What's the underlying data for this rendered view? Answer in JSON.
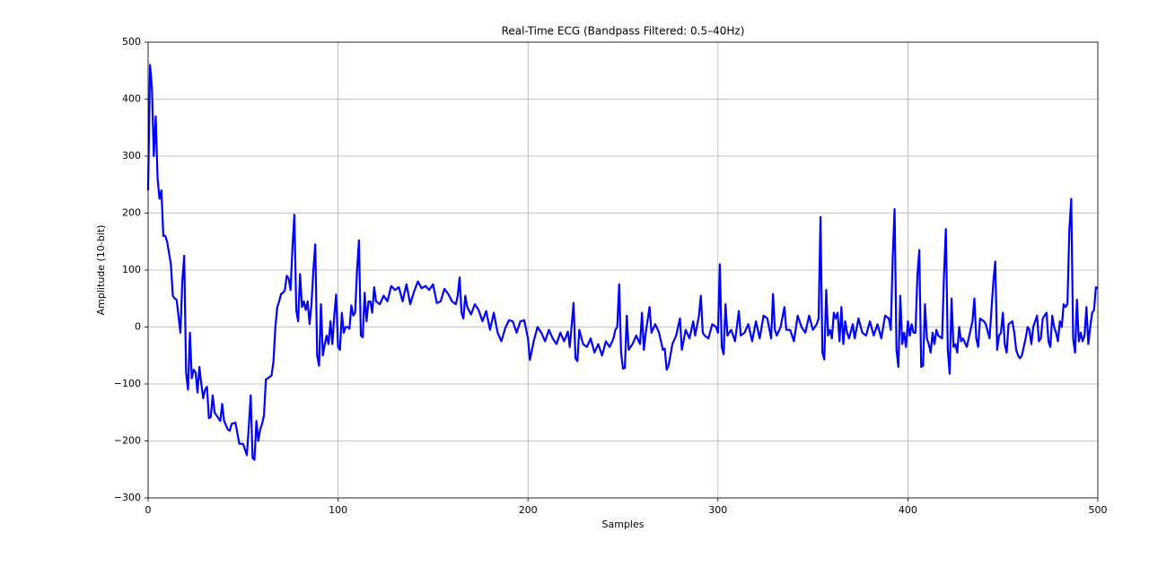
{
  "chart_data": {
    "type": "line",
    "title": "Real-Time ECG (Bandpass Filtered: 0.5–40Hz)",
    "xlabel": "Samples",
    "ylabel": "Amplitude (10-bit)",
    "color": "#0000ff",
    "grid": true,
    "xlim": [
      0,
      500
    ],
    "ylim": [
      -300,
      500
    ],
    "xticks": [
      0,
      100,
      200,
      300,
      400,
      500
    ],
    "yticks": [
      {
        "value": -300,
        "label": "−300"
      },
      {
        "value": -200,
        "label": "−200"
      },
      {
        "value": -100,
        "label": "−100"
      },
      0,
      100,
      200,
      300,
      400,
      500
    ],
    "x": [
      0,
      1,
      2,
      3,
      4,
      5,
      6,
      7,
      8,
      9,
      10,
      12,
      13,
      14,
      15,
      17,
      18,
      19,
      20,
      21,
      22,
      23,
      24,
      25,
      26,
      27,
      28,
      29,
      30,
      31,
      32,
      33,
      34,
      35,
      36,
      38,
      39,
      40,
      42,
      43,
      44,
      46,
      48,
      50,
      52,
      53,
      54,
      55,
      56,
      57,
      58,
      59,
      60,
      61,
      62,
      63,
      65,
      66,
      67,
      68,
      69,
      70,
      71,
      72,
      73,
      74,
      75,
      76,
      77,
      78,
      79,
      80,
      81,
      82,
      83,
      84,
      85,
      86,
      87,
      88,
      89,
      90,
      91,
      92,
      93,
      94,
      95,
      96,
      97,
      98,
      99,
      100,
      101,
      102,
      103,
      104,
      105,
      106,
      107,
      108,
      109,
      110,
      111,
      112,
      113,
      114,
      115,
      116,
      117,
      118,
      119,
      120,
      122,
      124,
      126,
      128,
      130,
      132,
      134,
      136,
      138,
      140,
      142,
      144,
      146,
      148,
      150,
      152,
      154,
      156,
      158,
      160,
      162,
      163,
      164,
      165,
      166,
      167,
      168,
      170,
      172,
      174,
      176,
      178,
      180,
      182,
      184,
      186,
      188,
      190,
      192,
      194,
      196,
      198,
      200,
      201,
      203,
      205,
      207,
      209,
      211,
      213,
      215,
      217,
      219,
      221,
      222,
      224,
      225,
      226,
      227,
      229,
      231,
      233,
      235,
      237,
      239,
      241,
      243,
      245,
      246,
      247,
      248,
      249,
      250,
      251,
      252,
      253,
      255,
      257,
      259,
      260,
      261,
      262,
      264,
      265,
      267,
      269,
      271,
      272,
      273,
      274,
      276,
      278,
      280,
      281,
      283,
      285,
      287,
      288,
      290,
      291,
      292,
      293,
      295,
      297,
      299,
      300,
      301,
      302,
      303,
      304,
      305,
      307,
      309,
      311,
      312,
      314,
      316,
      318,
      320,
      322,
      324,
      326,
      328,
      329,
      330,
      331,
      333,
      335,
      336,
      338,
      340,
      342,
      344,
      346,
      348,
      350,
      352,
      353,
      354,
      355,
      356,
      357,
      358,
      359,
      360,
      361,
      362,
      363,
      364,
      365,
      366,
      367,
      368,
      369,
      371,
      372,
      374,
      376,
      378,
      380,
      382,
      384,
      386,
      388,
      390,
      391,
      392,
      393,
      394,
      395,
      396,
      397,
      398,
      399,
      400,
      401,
      402,
      403,
      404,
      405,
      406,
      407,
      408,
      409,
      410,
      411,
      412,
      413,
      414,
      415,
      416,
      418,
      419,
      420,
      421,
      422,
      423,
      424,
      425,
      426,
      427,
      428,
      429,
      431,
      432,
      434,
      435,
      436,
      437,
      438,
      440,
      441,
      443,
      444,
      445,
      446,
      447,
      448,
      449,
      450,
      451,
      452,
      453,
      455,
      456,
      457,
      458,
      459,
      460,
      462,
      463,
      464,
      465,
      466,
      468,
      469,
      470,
      471,
      473,
      474,
      475,
      476,
      477,
      478,
      479,
      480,
      481,
      482,
      483,
      484,
      485,
      486,
      487,
      488,
      489,
      490,
      491,
      492,
      493,
      494,
      495,
      496,
      497,
      498,
      499,
      500
    ],
    "values": [
      240,
      460,
      420,
      300,
      370,
      260,
      225,
      240,
      160,
      160,
      150,
      110,
      55,
      50,
      48,
      -10,
      80,
      125,
      -80,
      -110,
      -10,
      -90,
      -75,
      -80,
      -115,
      -70,
      -100,
      -125,
      -110,
      -105,
      -160,
      -158,
      -120,
      -150,
      -155,
      -165,
      -135,
      -165,
      -180,
      -182,
      -170,
      -168,
      -205,
      -205,
      -225,
      -175,
      -120,
      -230,
      -233,
      -165,
      -200,
      -180,
      -170,
      -155,
      -92,
      -90,
      -85,
      -60,
      0,
      35,
      45,
      58,
      60,
      65,
      90,
      85,
      65,
      140,
      197,
      30,
      10,
      93,
      35,
      45,
      30,
      45,
      5,
      40,
      100,
      145,
      -50,
      -68,
      40,
      -50,
      -30,
      -15,
      -30,
      10,
      -30,
      20,
      57,
      -35,
      -40,
      25,
      -10,
      0,
      0,
      -3,
      38,
      20,
      25,
      100,
      152,
      -15,
      -18,
      60,
      10,
      45,
      45,
      25,
      70,
      45,
      40,
      55,
      45,
      72,
      65,
      70,
      45,
      75,
      40,
      62,
      80,
      68,
      72,
      65,
      75,
      42,
      45,
      67,
      58,
      45,
      40,
      55,
      87,
      25,
      15,
      55,
      35,
      22,
      40,
      30,
      10,
      28,
      -5,
      25,
      -10,
      -25,
      -2,
      12,
      10,
      -10,
      10,
      12,
      -20,
      -58,
      -25,
      0,
      -10,
      -25,
      -5,
      -20,
      -30,
      -10,
      -25,
      -8,
      -35,
      42,
      -55,
      -60,
      -5,
      -30,
      -35,
      -20,
      -45,
      -30,
      -50,
      -25,
      -35,
      -20,
      -5,
      0,
      75,
      -45,
      -73,
      -72,
      20,
      -40,
      -30,
      -15,
      -30,
      25,
      -40,
      -10,
      35,
      -10,
      5,
      -10,
      -40,
      -38,
      -75,
      -68,
      -30,
      -15,
      15,
      -40,
      -5,
      -20,
      10,
      -15,
      20,
      55,
      -10,
      -15,
      -20,
      5,
      0,
      -10,
      110,
      -35,
      -48,
      40,
      -15,
      -5,
      -25,
      28,
      -15,
      -10,
      5,
      -25,
      10,
      -20,
      20,
      15,
      -20,
      58,
      -5,
      -15,
      0,
      35,
      -5,
      -5,
      -25,
      20,
      0,
      -10,
      20,
      -5,
      5,
      15,
      193,
      -45,
      -57,
      65,
      -15,
      -5,
      -20,
      25,
      15,
      25,
      -25,
      35,
      -30,
      10,
      -10,
      -20,
      5,
      -20,
      15,
      -10,
      -15,
      10,
      -15,
      5,
      -20,
      20,
      15,
      -5,
      120,
      207,
      -40,
      -70,
      55,
      -30,
      -10,
      -35,
      10,
      -15,
      5,
      -10,
      -10,
      90,
      135,
      -70,
      -68,
      40,
      -20,
      -30,
      -45,
      -10,
      -30,
      -5,
      -15,
      -20,
      90,
      172,
      -40,
      -82,
      50,
      -35,
      -30,
      -45,
      0,
      -25,
      -20,
      -35,
      -20,
      10,
      50,
      -20,
      -35,
      15,
      10,
      5,
      -20,
      30,
      80,
      115,
      -40,
      -15,
      -10,
      25,
      -30,
      -45,
      5,
      10,
      -10,
      -40,
      -50,
      -55,
      -50,
      -20,
      0,
      -5,
      -30,
      0,
      20,
      -25,
      -20,
      15,
      25,
      -25,
      -35,
      20,
      0,
      -10,
      -25,
      10,
      0,
      40,
      35,
      40,
      170,
      225,
      -20,
      -45,
      48,
      -25,
      -10,
      -25,
      -15,
      35,
      -30,
      0,
      25,
      30,
      70,
      68
    ]
  }
}
